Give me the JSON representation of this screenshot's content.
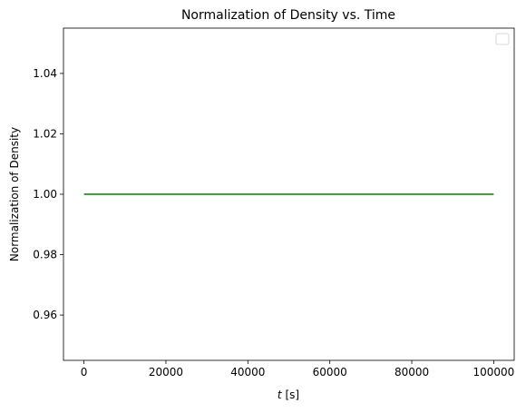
{
  "chart_data": {
    "type": "line",
    "title": "Normalization of Density vs. Time",
    "xlabel_var": "t",
    "xlabel_unit": " [s]",
    "ylabel": "Normalization of Density",
    "xlim": [
      -5000,
      105000
    ],
    "ylim": [
      0.945,
      1.055
    ],
    "xticks": [
      0,
      20000,
      40000,
      60000,
      80000,
      100000
    ],
    "yticks": [
      0.96,
      0.98,
      1.0,
      1.02,
      1.04
    ],
    "xtick_labels": [
      "0",
      "20000",
      "40000",
      "60000",
      "80000",
      "100000"
    ],
    "ytick_labels": [
      "0.96",
      "0.98",
      "1.00",
      "1.02",
      "1.04"
    ],
    "grid": false,
    "legend": {
      "position": "top-right",
      "entries": []
    },
    "series": [
      {
        "color": "#008000",
        "x": [
          0,
          100000
        ],
        "y": [
          1.0,
          1.0
        ]
      }
    ]
  }
}
